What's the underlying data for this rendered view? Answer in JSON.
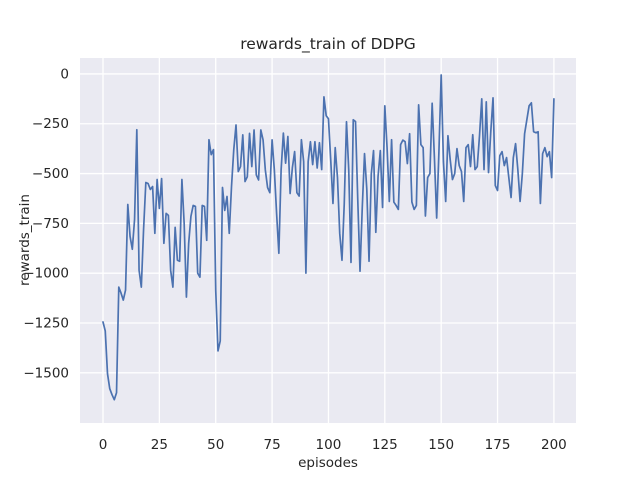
{
  "chart_data": {
    "type": "line",
    "title": "rewards_train of DDPG",
    "xlabel": "episodes",
    "ylabel": "rewards_train",
    "x_start": 0,
    "x_step": 1,
    "xticks": [
      0,
      25,
      50,
      75,
      100,
      125,
      150,
      175,
      200
    ],
    "yticks": [
      0,
      -250,
      -500,
      -750,
      -1000,
      -1250,
      -1500
    ],
    "xlim": [
      -10.2,
      209.8
    ],
    "ylim": [
      -1752,
      80
    ],
    "grid": true,
    "legend": "none",
    "style": {
      "line_color": "#4C72B0",
      "plot_bg": "#EAEAF2",
      "grid_color": "#FFFFFF",
      "text_color": "#262626",
      "fig_bg": "#FFFFFF"
    },
    "series": [
      {
        "name": "rewards_train",
        "values": [
          -1245,
          -1290,
          -1505,
          -1580,
          -1610,
          -1635,
          -1600,
          -1070,
          -1100,
          -1135,
          -1085,
          -655,
          -815,
          -880,
          -730,
          -280,
          -985,
          -1070,
          -780,
          -545,
          -550,
          -580,
          -565,
          -800,
          -530,
          -675,
          -525,
          -850,
          -700,
          -710,
          -985,
          -1070,
          -770,
          -935,
          -940,
          -530,
          -750,
          -1120,
          -850,
          -715,
          -660,
          -665,
          -1000,
          -1020,
          -660,
          -665,
          -835,
          -330,
          -405,
          -380,
          -1085,
          -1390,
          -1340,
          -570,
          -685,
          -615,
          -800,
          -565,
          -380,
          -256,
          -490,
          -465,
          -306,
          -540,
          -516,
          -298,
          -465,
          -281,
          -507,
          -532,
          -281,
          -331,
          -482,
          -570,
          -596,
          -331,
          -482,
          -700,
          -900,
          -482,
          -297,
          -448,
          -314,
          -600,
          -470,
          -390,
          -596,
          -613,
          -330,
          -440,
          -1000,
          -440,
          -340,
          -455,
          -340,
          -472,
          -345,
          -480,
          -115,
          -210,
          -225,
          -430,
          -650,
          -370,
          -520,
          -800,
          -935,
          -654,
          -240,
          -482,
          -946,
          -230,
          -239,
          -632,
          -990,
          -670,
          -400,
          -577,
          -940,
          -502,
          -385,
          -795,
          -515,
          -385,
          -670,
          -160,
          -370,
          -640,
          -330,
          -643,
          -660,
          -680,
          -355,
          -332,
          -340,
          -450,
          -300,
          -643,
          -680,
          -660,
          -155,
          -355,
          -370,
          -713,
          -520,
          -500,
          -147,
          -420,
          -723,
          -390,
          -5,
          -440,
          -640,
          -310,
          -430,
          -530,
          -500,
          -375,
          -460,
          -490,
          -640,
          -370,
          -355,
          -465,
          -305,
          -480,
          -465,
          -310,
          -125,
          -480,
          -140,
          -495,
          -290,
          -120,
          -560,
          -585,
          -410,
          -390,
          -460,
          -420,
          -520,
          -620,
          -420,
          -350,
          -480,
          -640,
          -500,
          -300,
          -230,
          -160,
          -145,
          -290,
          -295,
          -290,
          -650,
          -400,
          -370,
          -415,
          -390,
          -520,
          -125
        ]
      }
    ]
  }
}
